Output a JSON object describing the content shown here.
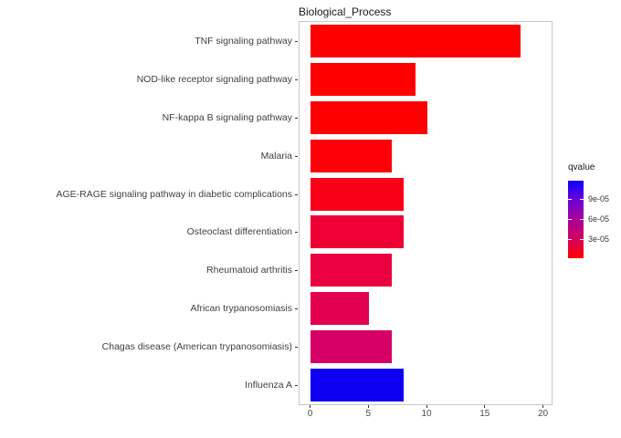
{
  "title": "Biological_Process",
  "chart_data": {
    "type": "bar",
    "orientation": "horizontal",
    "title": "Biological_Process",
    "categories": [
      "TNF signaling pathway",
      "NOD-like receptor signaling pathway",
      "NF-kappa B signaling pathway",
      "Malaria",
      "AGE-RAGE signaling pathway in diabetic complications",
      "Osteoclast differentiation",
      "Rheumatoid arthritis",
      "African trypanosomiasis",
      "Chagas disease (American trypanosomiasis)",
      "Influenza A"
    ],
    "values": [
      18,
      9,
      10,
      7,
      8,
      8,
      7,
      5,
      7,
      8
    ],
    "bar_colors": [
      "#FF0000",
      "#FF0000",
      "#FF0000",
      "#FE0008",
      "#FA0018",
      "#EF0034",
      "#EB0040",
      "#E3004F",
      "#D60066",
      "#0D00F2"
    ],
    "xlabel": "",
    "ylabel": "",
    "xlim": [
      0,
      20
    ],
    "x_ticks": [
      0,
      5,
      10,
      15,
      20
    ],
    "grid": false,
    "legend": {
      "title": "qvalue",
      "position": "right",
      "style": "colorbar",
      "tick_labels": [
        "9e-05",
        "6e-05",
        "3e-05"
      ],
      "tick_positions_pct": [
        23.5,
        49.4,
        75.3
      ],
      "gradient_stops": [
        "#0B00FF",
        "#6D00D6",
        "#A80097",
        "#D4005E",
        "#FF0000"
      ],
      "high_color": "#0B00FF",
      "low_color": "#FF0000"
    },
    "colors": {
      "panel_border": "#C8C8C8",
      "panel_bg": "#FFFFFF",
      "axis_text": "#4D4D4D",
      "tick_mark": "#333333"
    }
  }
}
